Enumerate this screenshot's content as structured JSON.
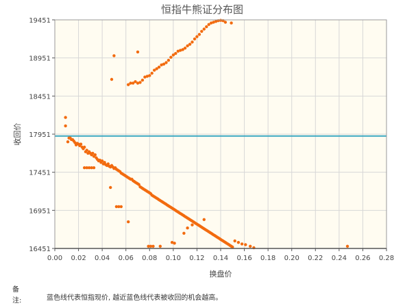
{
  "chart_data": {
    "type": "scatter",
    "title": "恒指牛熊证分布图",
    "xlabel": "换盘价",
    "ylabel": "收回价",
    "xlim": [
      0,
      0.28
    ],
    "ylim": [
      16451,
      19451
    ],
    "x_ticks": [
      "0.00",
      "0.02",
      "0.04",
      "0.06",
      "0.08",
      "0.10",
      "0.12",
      "0.14",
      "0.16",
      "0.18",
      "0.20",
      "0.22",
      "0.24",
      "0.26",
      "0.28"
    ],
    "y_ticks": [
      "16451",
      "16951",
      "17451",
      "17951",
      "18451",
      "18951",
      "19451"
    ],
    "grid": true,
    "reference_line": {
      "y": 17926,
      "color": "#3aa8c1"
    },
    "point_color": "#f26b0f",
    "points": [
      [
        0.009,
        18170
      ],
      [
        0.009,
        18060
      ],
      [
        0.011,
        17850
      ],
      [
        0.012,
        17900
      ],
      [
        0.013,
        17900
      ],
      [
        0.014,
        17880
      ],
      [
        0.015,
        17880
      ],
      [
        0.016,
        17860
      ],
      [
        0.017,
        17840
      ],
      [
        0.018,
        17810
      ],
      [
        0.019,
        17830
      ],
      [
        0.02,
        17820
      ],
      [
        0.021,
        17800
      ],
      [
        0.022,
        17820
      ],
      [
        0.023,
        17780
      ],
      [
        0.024,
        17760
      ],
      [
        0.025,
        17780
      ],
      [
        0.026,
        17720
      ],
      [
        0.027,
        17740
      ],
      [
        0.028,
        17700
      ],
      [
        0.029,
        17720
      ],
      [
        0.03,
        17700
      ],
      [
        0.031,
        17680
      ],
      [
        0.032,
        17700
      ],
      [
        0.033,
        17660
      ],
      [
        0.034,
        17680
      ],
      [
        0.035,
        17640
      ],
      [
        0.036,
        17620
      ],
      [
        0.037,
        17600
      ],
      [
        0.038,
        17610
      ],
      [
        0.039,
        17580
      ],
      [
        0.04,
        17600
      ],
      [
        0.041,
        17560
      ],
      [
        0.042,
        17580
      ],
      [
        0.043,
        17550
      ],
      [
        0.044,
        17540
      ],
      [
        0.045,
        17560
      ],
      [
        0.046,
        17530
      ],
      [
        0.047,
        17520
      ],
      [
        0.048,
        17540
      ],
      [
        0.049,
        17520
      ],
      [
        0.05,
        17500
      ],
      [
        0.051,
        17510
      ],
      [
        0.052,
        17490
      ],
      [
        0.053,
        17480
      ],
      [
        0.054,
        17470
      ],
      [
        0.055,
        17460
      ],
      [
        0.056,
        17440
      ],
      [
        0.057,
        17430
      ],
      [
        0.058,
        17420
      ],
      [
        0.059,
        17410
      ],
      [
        0.06,
        17400
      ],
      [
        0.061,
        17390
      ],
      [
        0.062,
        17380
      ],
      [
        0.063,
        17370
      ],
      [
        0.064,
        17360
      ],
      [
        0.065,
        17360
      ],
      [
        0.066,
        17340
      ],
      [
        0.067,
        17330
      ],
      [
        0.068,
        17320
      ],
      [
        0.069,
        17310
      ],
      [
        0.07,
        17300
      ],
      [
        0.071,
        17290
      ],
      [
        0.072,
        17260
      ],
      [
        0.073,
        17250
      ],
      [
        0.074,
        17240
      ],
      [
        0.075,
        17230
      ],
      [
        0.076,
        17220
      ],
      [
        0.077,
        17210
      ],
      [
        0.078,
        17200
      ],
      [
        0.079,
        17190
      ],
      [
        0.08,
        17180
      ],
      [
        0.081,
        17170
      ],
      [
        0.082,
        17150
      ],
      [
        0.083,
        17140
      ],
      [
        0.084,
        17130
      ],
      [
        0.085,
        17120
      ],
      [
        0.086,
        17110
      ],
      [
        0.087,
        17100
      ],
      [
        0.088,
        17090
      ],
      [
        0.089,
        17080
      ],
      [
        0.09,
        17070
      ],
      [
        0.091,
        17060
      ],
      [
        0.092,
        17050
      ],
      [
        0.093,
        17040
      ],
      [
        0.094,
        17030
      ],
      [
        0.095,
        17020
      ],
      [
        0.096,
        17010
      ],
      [
        0.097,
        17000
      ],
      [
        0.098,
        16990
      ],
      [
        0.099,
        16980
      ],
      [
        0.1,
        16970
      ],
      [
        0.101,
        16960
      ],
      [
        0.102,
        16950
      ],
      [
        0.103,
        16940
      ],
      [
        0.104,
        16930
      ],
      [
        0.105,
        16920
      ],
      [
        0.106,
        16910
      ],
      [
        0.107,
        16900
      ],
      [
        0.108,
        16890
      ],
      [
        0.109,
        16880
      ],
      [
        0.11,
        16870
      ],
      [
        0.111,
        16860
      ],
      [
        0.112,
        16850
      ],
      [
        0.113,
        16840
      ],
      [
        0.114,
        16830
      ],
      [
        0.115,
        16820
      ],
      [
        0.116,
        16810
      ],
      [
        0.117,
        16800
      ],
      [
        0.118,
        16790
      ],
      [
        0.119,
        16780
      ],
      [
        0.12,
        16770
      ],
      [
        0.121,
        16760
      ],
      [
        0.122,
        16750
      ],
      [
        0.123,
        16740
      ],
      [
        0.124,
        16730
      ],
      [
        0.125,
        16720
      ],
      [
        0.126,
        16710
      ],
      [
        0.127,
        16700
      ],
      [
        0.128,
        16690
      ],
      [
        0.129,
        16680
      ],
      [
        0.13,
        16670
      ],
      [
        0.131,
        16660
      ],
      [
        0.132,
        16650
      ],
      [
        0.133,
        16640
      ],
      [
        0.134,
        16630
      ],
      [
        0.135,
        16620
      ],
      [
        0.136,
        16610
      ],
      [
        0.137,
        16600
      ],
      [
        0.138,
        16590
      ],
      [
        0.139,
        16580
      ],
      [
        0.14,
        16570
      ],
      [
        0.141,
        16560
      ],
      [
        0.142,
        16550
      ],
      [
        0.143,
        16540
      ],
      [
        0.144,
        16530
      ],
      [
        0.145,
        16520
      ],
      [
        0.146,
        16510
      ],
      [
        0.147,
        16500
      ],
      [
        0.148,
        16490
      ],
      [
        0.149,
        16480
      ],
      [
        0.15,
        16470
      ],
      [
        0.025,
        17510
      ],
      [
        0.027,
        17510
      ],
      [
        0.029,
        17510
      ],
      [
        0.031,
        17510
      ],
      [
        0.033,
        17510
      ],
      [
        0.047,
        17251
      ],
      [
        0.052,
        17000
      ],
      [
        0.054,
        17000
      ],
      [
        0.056,
        17000
      ],
      [
        0.062,
        16800
      ],
      [
        0.079,
        16480
      ],
      [
        0.081,
        16480
      ],
      [
        0.083,
        16480
      ],
      [
        0.089,
        16480
      ],
      [
        0.099,
        16530
      ],
      [
        0.101,
        16520
      ],
      [
        0.109,
        16650
      ],
      [
        0.112,
        16720
      ],
      [
        0.116,
        16760
      ],
      [
        0.126,
        16830
      ],
      [
        0.152,
        16550
      ],
      [
        0.155,
        16530
      ],
      [
        0.158,
        16510
      ],
      [
        0.161,
        16500
      ],
      [
        0.165,
        16480
      ],
      [
        0.168,
        16460
      ],
      [
        0.247,
        16480
      ],
      [
        0.048,
        18670
      ],
      [
        0.05,
        18980
      ],
      [
        0.07,
        19030
      ],
      [
        0.062,
        18600
      ],
      [
        0.064,
        18620
      ],
      [
        0.066,
        18620
      ],
      [
        0.068,
        18640
      ],
      [
        0.07,
        18620
      ],
      [
        0.072,
        18630
      ],
      [
        0.074,
        18660
      ],
      [
        0.076,
        18700
      ],
      [
        0.078,
        18710
      ],
      [
        0.08,
        18720
      ],
      [
        0.082,
        18750
      ],
      [
        0.084,
        18790
      ],
      [
        0.086,
        18810
      ],
      [
        0.088,
        18830
      ],
      [
        0.09,
        18860
      ],
      [
        0.092,
        18870
      ],
      [
        0.094,
        18890
      ],
      [
        0.096,
        18920
      ],
      [
        0.098,
        18960
      ],
      [
        0.1,
        18990
      ],
      [
        0.102,
        19010
      ],
      [
        0.104,
        19040
      ],
      [
        0.106,
        19050
      ],
      [
        0.108,
        19060
      ],
      [
        0.11,
        19080
      ],
      [
        0.112,
        19110
      ],
      [
        0.114,
        19130
      ],
      [
        0.116,
        19160
      ],
      [
        0.118,
        19200
      ],
      [
        0.12,
        19230
      ],
      [
        0.122,
        19260
      ],
      [
        0.124,
        19300
      ],
      [
        0.126,
        19330
      ],
      [
        0.128,
        19360
      ],
      [
        0.13,
        19390
      ],
      [
        0.132,
        19410
      ],
      [
        0.134,
        19420
      ],
      [
        0.136,
        19430
      ],
      [
        0.138,
        19440
      ],
      [
        0.14,
        19445
      ],
      [
        0.142,
        19440
      ],
      [
        0.144,
        19420
      ],
      [
        0.149,
        19410
      ]
    ]
  },
  "note": {
    "label": "备注:",
    "text": "蓝色线代表恒指现价, 越近蓝色线代表被收回的机会越高。"
  }
}
